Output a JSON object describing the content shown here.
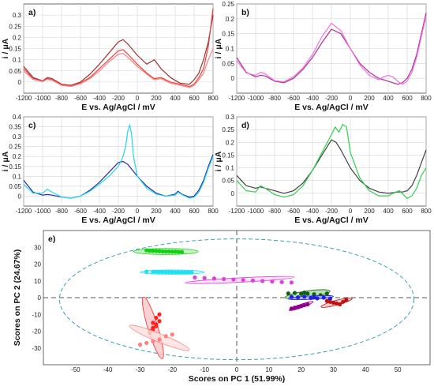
{
  "chart_data": [
    {
      "panel": "a)",
      "type": "line",
      "xlabel": "E vs. Ag/AgCl / mV",
      "ylabel": "i / μA",
      "xlim": [
        -1200,
        800
      ],
      "ylim": [
        -0.05,
        0.35
      ],
      "xticks": [
        -1200,
        -1000,
        -800,
        -600,
        -400,
        -200,
        0,
        200,
        400,
        600,
        800
      ],
      "yticks": [
        0,
        0.05,
        0.1,
        0.15,
        0.2,
        0.25,
        0.3
      ],
      "grid": true,
      "series": [
        {
          "color": "#a03030",
          "x": [
            -1200,
            -1100,
            -1000,
            -950,
            -900,
            -800,
            -700,
            -600,
            -500,
            -400,
            -300,
            -200,
            -150,
            -100,
            0,
            100,
            180,
            250,
            350,
            450,
            550,
            600,
            650,
            700,
            750,
            800
          ],
          "y": [
            0.07,
            0.02,
            0.005,
            0.02,
            0.015,
            -0.01,
            -0.015,
            0.0,
            0.035,
            0.08,
            0.13,
            0.18,
            0.19,
            0.17,
            0.12,
            0.08,
            0.1,
            0.06,
            0.02,
            -0.005,
            -0.01,
            0.01,
            0.04,
            0.1,
            0.18,
            0.3
          ]
        },
        {
          "color": "#e84040",
          "x": [
            -1200,
            -1100,
            -1000,
            -950,
            -900,
            -800,
            -700,
            -600,
            -500,
            -400,
            -300,
            -200,
            -150,
            -100,
            0,
            100,
            180,
            250,
            350,
            450,
            550,
            600,
            650,
            700,
            750,
            800
          ],
          "y": [
            0.06,
            0.015,
            0.003,
            0.015,
            0.01,
            -0.012,
            -0.018,
            -0.005,
            0.02,
            0.06,
            0.1,
            0.14,
            0.145,
            0.125,
            0.08,
            0.04,
            0.015,
            0.02,
            0.0,
            -0.01,
            -0.02,
            -0.01,
            0.02,
            0.06,
            0.16,
            0.33
          ]
        },
        {
          "color": "#ff8080",
          "x": [
            -1200,
            -1100,
            -1000,
            -950,
            -900,
            -800,
            -700,
            -600,
            -500,
            -400,
            -300,
            -200,
            -150,
            -100,
            0,
            100,
            180,
            250,
            350,
            450,
            550,
            600,
            650,
            700,
            750,
            800
          ],
          "y": [
            0.05,
            0.012,
            0.002,
            0.012,
            0.008,
            -0.015,
            -0.02,
            -0.008,
            0.015,
            0.05,
            0.09,
            0.125,
            0.128,
            0.11,
            0.07,
            0.035,
            0.01,
            0.015,
            -0.005,
            -0.015,
            -0.025,
            -0.015,
            0.01,
            0.04,
            0.1,
            0.15
          ]
        }
      ]
    },
    {
      "panel": "b)",
      "type": "line",
      "xlabel": "E vs. Ag/AgCl / mV",
      "ylabel": "i / μA",
      "xlim": [
        -1200,
        800
      ],
      "ylim": [
        -0.05,
        0.25
      ],
      "xticks": [
        -1200,
        -1000,
        -800,
        -600,
        -400,
        -200,
        0,
        200,
        400,
        600,
        800
      ],
      "yticks": [
        0,
        0.05,
        0.1,
        0.15,
        0.2,
        0.25
      ],
      "grid": true,
      "series": [
        {
          "color": "#b03090",
          "x": [
            -1200,
            -1100,
            -1000,
            -950,
            -900,
            -800,
            -700,
            -600,
            -500,
            -400,
            -300,
            -200,
            -100,
            0,
            100,
            200,
            300,
            350,
            400,
            450,
            500,
            550,
            600,
            650,
            700,
            750,
            800
          ],
          "y": [
            0.07,
            0.02,
            0.005,
            0.01,
            0.008,
            -0.01,
            -0.015,
            0.0,
            0.03,
            0.07,
            0.12,
            0.165,
            0.15,
            0.1,
            0.05,
            0.02,
            0.0,
            -0.005,
            -0.01,
            -0.015,
            -0.02,
            -0.015,
            0.0,
            0.03,
            0.08,
            0.15,
            0.22
          ]
        },
        {
          "color": "#f070e8",
          "x": [
            -1200,
            -1100,
            -1000,
            -950,
            -900,
            -800,
            -700,
            -600,
            -500,
            -400,
            -300,
            -200,
            -100,
            0,
            100,
            200,
            300,
            350,
            400,
            450,
            500,
            550,
            600,
            650,
            700,
            750,
            800
          ],
          "y": [
            0.06,
            0.018,
            0.01,
            0.02,
            0.015,
            -0.008,
            -0.012,
            0.005,
            0.035,
            0.08,
            0.14,
            0.185,
            0.16,
            0.1,
            0.045,
            0.01,
            -0.005,
            0.005,
            0.01,
            0.005,
            -0.01,
            -0.02,
            -0.01,
            0.02,
            0.07,
            0.14,
            0.21
          ]
        }
      ]
    },
    {
      "panel": "c)",
      "type": "line",
      "xlabel": "E vs. Ag/AgCl / mV",
      "ylabel": "i / μA",
      "xlim": [
        -1200,
        800
      ],
      "ylim": [
        -0.05,
        0.4
      ],
      "xticks": [
        -1200,
        -1000,
        -800,
        -600,
        -400,
        -200,
        0,
        200,
        400,
        600,
        800
      ],
      "yticks": [
        0,
        0.05,
        0.1,
        0.15,
        0.2,
        0.25,
        0.3,
        0.35,
        0.4
      ],
      "grid": true,
      "series": [
        {
          "color": "#2a2aa0",
          "x": [
            -1200,
            -1100,
            -1000,
            -950,
            -900,
            -800,
            -700,
            -600,
            -500,
            -400,
            -300,
            -200,
            -150,
            -100,
            -50,
            0,
            100,
            200,
            300,
            400,
            430,
            470,
            550,
            600,
            650,
            700,
            750,
            800
          ],
          "y": [
            0.08,
            0.02,
            0.005,
            0.008,
            0.005,
            -0.005,
            -0.01,
            0.0,
            0.03,
            0.07,
            0.12,
            0.17,
            0.175,
            0.16,
            0.13,
            0.1,
            0.05,
            0.015,
            0.0,
            0.01,
            0.025,
            0.01,
            -0.005,
            0.0,
            0.03,
            0.08,
            0.15,
            0.21
          ]
        },
        {
          "color": "#20d8e8",
          "x": [
            -1200,
            -1100,
            -1000,
            -950,
            -900,
            -800,
            -700,
            -600,
            -500,
            -400,
            -300,
            -200,
            -150,
            -120,
            -100,
            -80,
            -60,
            -40,
            0,
            100,
            200,
            300,
            400,
            430,
            470,
            550,
            600,
            650,
            700,
            750,
            800
          ],
          "y": [
            0.06,
            0.015,
            0.015,
            0.035,
            0.02,
            -0.005,
            -0.01,
            0.0,
            0.025,
            0.06,
            0.1,
            0.15,
            0.2,
            0.26,
            0.33,
            0.36,
            0.31,
            0.2,
            0.1,
            0.04,
            0.01,
            0.0,
            0.005,
            0.02,
            0.008,
            -0.01,
            -0.005,
            0.02,
            0.07,
            0.14,
            0.2
          ]
        }
      ]
    },
    {
      "panel": "d)",
      "type": "line",
      "xlabel": "E vs. Ag/AgCl / mV",
      "ylabel": "i / μA",
      "xlim": [
        -1200,
        800
      ],
      "ylim": [
        -0.05,
        0.3
      ],
      "xticks": [
        -1200,
        -1000,
        -800,
        -600,
        -400,
        -200,
        0,
        200,
        400,
        600,
        800
      ],
      "yticks": [
        0,
        0.05,
        0.1,
        0.15,
        0.2,
        0.25,
        0.3
      ],
      "grid": true,
      "series": [
        {
          "color": "#404040",
          "x": [
            -1200,
            -1100,
            -1000,
            -950,
            -900,
            -800,
            -700,
            -600,
            -500,
            -400,
            -300,
            -200,
            -150,
            -100,
            0,
            100,
            200,
            300,
            400,
            500,
            550,
            600,
            650,
            700,
            750,
            800
          ],
          "y": [
            0.07,
            0.03,
            0.02,
            0.025,
            0.02,
            0.01,
            0.0,
            0.01,
            0.04,
            0.09,
            0.15,
            0.21,
            0.2,
            0.17,
            0.1,
            0.05,
            0.02,
            0.005,
            0.0,
            0.005,
            0.005,
            0.01,
            0.03,
            0.07,
            0.12,
            0.17
          ]
        },
        {
          "color": "#30d050",
          "x": [
            -1200,
            -1100,
            -1000,
            -950,
            -900,
            -800,
            -700,
            -600,
            -500,
            -400,
            -300,
            -200,
            -160,
            -120,
            -80,
            -40,
            0,
            100,
            200,
            300,
            400,
            480,
            520,
            600,
            650,
            700,
            750,
            800
          ],
          "y": [
            0.05,
            0.01,
            0.005,
            0.03,
            0.02,
            -0.005,
            -0.015,
            -0.005,
            0.03,
            0.09,
            0.16,
            0.23,
            0.26,
            0.24,
            0.27,
            0.26,
            0.16,
            0.06,
            0.01,
            -0.01,
            -0.01,
            0.005,
            0.01,
            -0.02,
            -0.01,
            0.02,
            0.07,
            0.1
          ]
        }
      ]
    },
    {
      "panel": "e)",
      "type": "scatter",
      "xlabel": "Scores on PC 1 (51.99%)",
      "ylabel": "Scores on PC 2 (24.67%)",
      "xlim": [
        -60,
        60
      ],
      "ylim": [
        -40,
        40
      ],
      "xticks": [
        -50,
        -40,
        -30,
        -20,
        -10,
        0,
        10,
        20,
        30,
        40,
        50
      ],
      "yticks": [
        -30,
        -20,
        -10,
        0,
        10,
        20,
        30
      ],
      "grid": false,
      "zero_lines": true,
      "confidence_ellipse": {
        "cx": 0,
        "cy": -1,
        "rx": 55,
        "ry": 36,
        "color": "#3aa0b0"
      },
      "groups": [
        {
          "color": "#10d010",
          "fill": "#b8f0b8",
          "ellipse": {
            "cx": -22,
            "cy": 27.5,
            "rx": 10,
            "ry": 1.8,
            "angle": 0
          },
          "x": [
            -28,
            -27,
            -26,
            -25,
            -24,
            -23,
            -22,
            -21,
            -20,
            -19,
            -18,
            -17
          ],
          "y": [
            28.2,
            28,
            27.9,
            27.8,
            27.7,
            27.6,
            27.5,
            27.5,
            27.4,
            27.4,
            27.3,
            27.2
          ]
        },
        {
          "color": "#20e0f0",
          "fill": "#b8f4fa",
          "ellipse": {
            "cx": -20,
            "cy": 15.2,
            "rx": 10,
            "ry": 1.3,
            "angle": 0
          },
          "x": [
            -28,
            -26,
            -25,
            -24,
            -23,
            -22,
            -21,
            -20,
            -19,
            -18,
            -17,
            -16,
            -15,
            -14
          ],
          "y": [
            15.5,
            15.4,
            15.4,
            15.3,
            15.3,
            15.2,
            15.2,
            15.2,
            15.1,
            15.1,
            15.1,
            15,
            15,
            15
          ]
        },
        {
          "color": "#e040e0",
          "fill": "#fadcf8",
          "ellipse": {
            "cx": 1,
            "cy": 10.5,
            "rx": 17,
            "ry": 1.3,
            "angle": -3
          },
          "x": [
            -13,
            -10,
            -7,
            -4,
            -1,
            2,
            5,
            8,
            11,
            14,
            17
          ],
          "y": [
            12,
            11.7,
            11.4,
            11.1,
            10.8,
            10.5,
            10.2,
            9.9,
            9.6,
            9.3,
            9
          ]
        },
        {
          "color": "#106010",
          "fill": "#a8d8a8",
          "ellipse": {
            "cx": 22,
            "cy": 2,
            "rx": 7,
            "ry": 2,
            "angle": -8
          },
          "x": [
            16,
            18,
            20,
            21,
            22,
            24,
            26,
            28
          ],
          "y": [
            2.5,
            2.8,
            2.2,
            3,
            2.4,
            2,
            1.5,
            2.4
          ]
        },
        {
          "color": "#2020e0",
          "fill": "#b8b8f4",
          "ellipse": {
            "cx": 23,
            "cy": 0,
            "rx": 7,
            "ry": 1,
            "angle": -3
          },
          "x": [
            17,
            19,
            21,
            23,
            24,
            25,
            27,
            29
          ],
          "y": [
            0.4,
            0.2,
            0.6,
            -0.2,
            0.2,
            -0.4,
            0,
            -0.6
          ]
        },
        {
          "color": "#c01010",
          "fill": "#f0c0c0",
          "ellipse": {
            "cx": 31,
            "cy": -3,
            "rx": 5,
            "ry": 1.4,
            "angle": -15
          },
          "x": [
            28,
            29,
            30,
            31,
            32,
            33,
            34
          ],
          "y": [
            -2,
            -2.5,
            -3,
            -3.5,
            -4,
            -2.5,
            -1.5
          ]
        },
        {
          "color": "#900090",
          "fill": "#e8b8e8",
          "ellipse": {
            "cx": 20,
            "cy": -5,
            "rx": 4,
            "ry": 1,
            "angle": -20
          },
          "x": [
            17,
            18,
            19,
            20,
            21,
            22
          ],
          "y": [
            -6.5,
            -6,
            -5.5,
            -5,
            -4.5,
            -4
          ]
        },
        {
          "color": "#ff2020",
          "fill": "#f8c8c8",
          "ellipse": {
            "cx": -26,
            "cy": -18,
            "rx": 10,
            "ry": 3,
            "angle": 73
          },
          "x": [
            -27,
            -26,
            -26,
            -25,
            -25,
            -24,
            -26,
            -27,
            -25,
            -24
          ],
          "y": [
            -21,
            -19,
            -18,
            -17,
            -16,
            -14,
            -15,
            -20,
            -12,
            -10
          ]
        },
        {
          "color": "#ff8080",
          "fill": "#fde0e0",
          "ellipse": {
            "cx": -24,
            "cy": -24,
            "rx": 10,
            "ry": 2.5,
            "angle": 22
          },
          "x": [
            -30,
            -28,
            -26,
            -24,
            -22,
            -20
          ],
          "y": [
            -28,
            -27,
            -26,
            -25,
            -23,
            -22
          ]
        }
      ]
    }
  ]
}
